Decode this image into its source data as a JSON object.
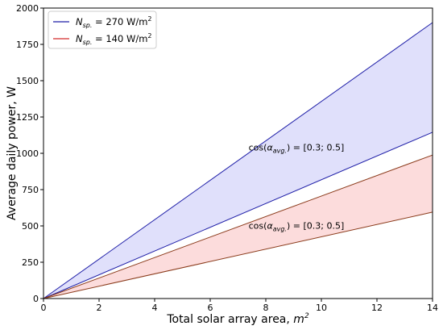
{
  "chart_data": {
    "type": "area",
    "xlabel": "Total solar array area, m²",
    "ylabel": "Average daily power, W",
    "xlim": [
      0,
      14
    ],
    "ylim": [
      0,
      2000
    ],
    "xticks": [
      "0",
      "2",
      "4",
      "6",
      "8",
      "10",
      "12",
      "14"
    ],
    "yticks": [
      "0",
      "250",
      "500",
      "750",
      "1000",
      "1250",
      "1500",
      "1750",
      "2000"
    ],
    "grid": false,
    "legend_position": "top-left",
    "series": [
      {
        "name": "N_sp. = 270 W/m²",
        "legend_base": "N",
        "legend_sub": "sp.",
        "legend_rest": " = 270 W/m",
        "legend_sup": "2",
        "color": "#1f1fa8",
        "fill": "#e0e0fb",
        "x": [
          0,
          14
        ],
        "upper": [
          0,
          1900
        ],
        "lower": [
          0,
          1145
        ],
        "annotation": "cos(α_avg.) = [0.3; 0.5]",
        "annotation_parts": [
          "cos(",
          "α",
          "avg.",
          ") = [0.3; 0.5]"
        ],
        "annotation_at": [
          9.1,
          1020
        ]
      },
      {
        "name": "N_sp. = 140 W/m²",
        "legend_base": "N",
        "legend_sub": "sp.",
        "legend_rest": " = 140 W/m",
        "legend_sup": "2",
        "color": "#d42a2a",
        "line_color": "#8a3a1a",
        "fill": "#fcdcdc",
        "x": [
          0,
          14
        ],
        "upper": [
          0,
          988
        ],
        "lower": [
          0,
          595
        ],
        "annotation": "cos(α_avg.) = [0.3; 0.5]",
        "annotation_parts": [
          "cos(",
          "α",
          "avg.",
          ") = [0.3; 0.5]"
        ],
        "annotation_at": [
          9.1,
          480
        ]
      }
    ]
  }
}
